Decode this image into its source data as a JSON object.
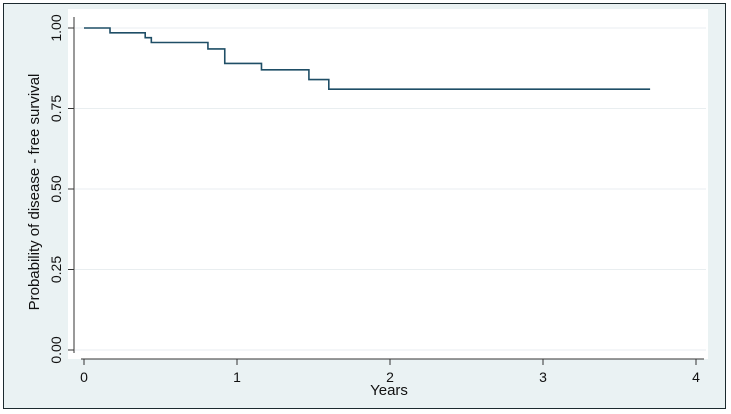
{
  "chart_data": {
    "type": "line",
    "title": "",
    "xlabel": "Years",
    "ylabel": "Probability of disease - free survival",
    "xlim": [
      0,
      4
    ],
    "ylim": [
      0,
      1
    ],
    "xticks": [
      0,
      1,
      2,
      3,
      4
    ],
    "xtick_labels": [
      "0",
      "1",
      "2",
      "3",
      "4"
    ],
    "yticks": [
      0,
      0.25,
      0.5,
      0.75,
      1.0
    ],
    "ytick_labels": [
      "0.00",
      "0.25",
      "0.50",
      "0.75",
      "1.00"
    ],
    "grid": true,
    "step": true,
    "series": [
      {
        "name": "",
        "color": "#1f4e66",
        "x": [
          0,
          0.17,
          0.4,
          0.44,
          0.81,
          0.92,
          1.16,
          1.47,
          1.6,
          3.7
        ],
        "y": [
          1.0,
          0.985,
          0.97,
          0.955,
          0.935,
          0.89,
          0.87,
          0.84,
          0.81,
          0.81
        ]
      }
    ]
  }
}
